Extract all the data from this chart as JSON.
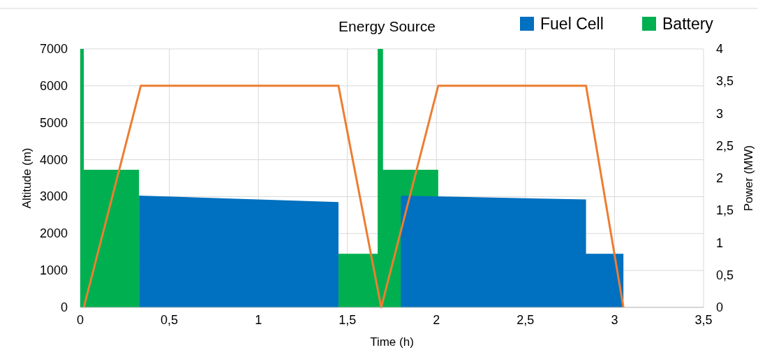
{
  "chart_data": {
    "type": "area",
    "title": "Energy Source",
    "xlabel": "Time (h)",
    "ylabel": "Altitude (m)",
    "y2label": "Power (MW)",
    "xlim": [
      0,
      3.5
    ],
    "xticks": [
      0,
      {
        "value": 0.5,
        "label": "0,5"
      },
      1,
      {
        "value": 1.5,
        "label": "1,5"
      },
      2,
      {
        "value": 2.5,
        "label": "2,5"
      },
      3,
      {
        "value": 3.5,
        "label": "3,5"
      }
    ],
    "ylim": [
      0,
      7000
    ],
    "yticks": [
      0,
      1000,
      2000,
      3000,
      4000,
      5000,
      6000,
      7000
    ],
    "y2lim": [
      0,
      4
    ],
    "y2ticks": [
      0,
      {
        "value": 0.5,
        "label": "0,5"
      },
      1,
      {
        "value": 1.5,
        "label": "1,5"
      },
      2,
      {
        "value": 2.5,
        "label": "2,5"
      },
      3,
      {
        "value": 3.5,
        "label": "3,5"
      },
      4
    ],
    "grid": true,
    "legend": "top right",
    "series": [
      {
        "name": "Fuel Cell",
        "axis": "y2",
        "color": "#0070c0",
        "x": [
          0.33,
          0.33,
          1.45,
          1.45,
          1.8,
          1.8,
          2.84,
          2.84,
          3.05,
          3.05
        ],
        "values": [
          0,
          1.73,
          1.63,
          0,
          0,
          1.73,
          1.67,
          0.83,
          0.83,
          0
        ]
      },
      {
        "name": "Battery",
        "axis": "y2",
        "color": "#00b050",
        "x": [
          0,
          0,
          0.02,
          0.02,
          0.33,
          0.33,
          1.45,
          1.45,
          1.67,
          1.67,
          1.7,
          1.7,
          2.01,
          2.01
        ],
        "values": [
          0,
          4,
          4,
          2.13,
          2.13,
          0,
          0,
          0.83,
          0.83,
          4,
          4,
          2.13,
          2.13,
          0
        ]
      },
      {
        "type": "line",
        "color": "#ed7d31",
        "x": [
          0.02,
          0.34,
          1.45,
          1.69,
          2.01,
          2.84,
          3.05
        ],
        "values": [
          0,
          6000,
          6000,
          0,
          6000,
          6000,
          0
        ]
      }
    ]
  }
}
